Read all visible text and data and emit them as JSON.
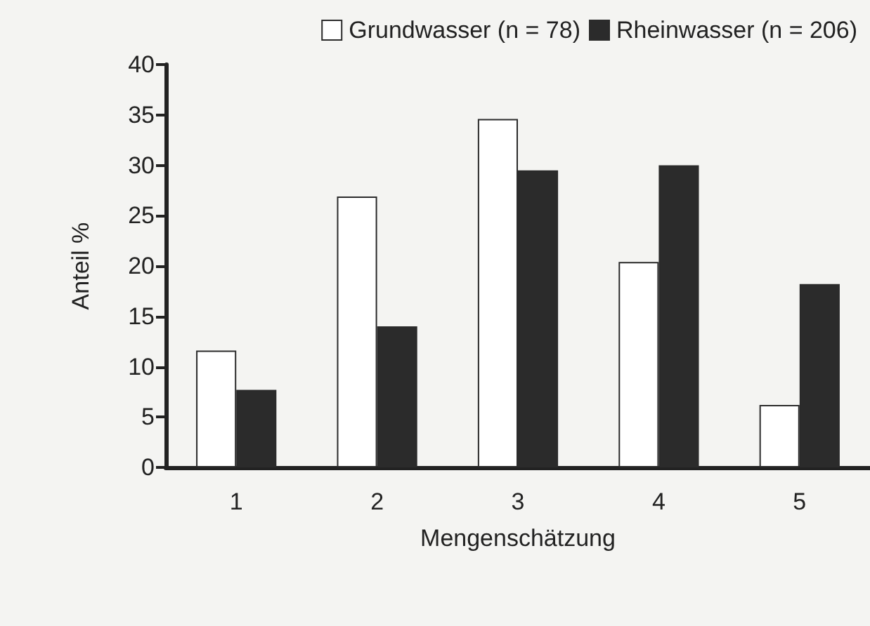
{
  "chart_data": {
    "type": "bar",
    "xlabel": "Mengenschätzung",
    "ylabel": "Anteil %",
    "categories": [
      "1",
      "2",
      "3",
      "4",
      "5"
    ],
    "series": [
      {
        "name": "Grundwasser (n = 78)",
        "color": "#ffffff",
        "values": [
          11.6,
          26.9,
          34.6,
          20.4,
          6.2
        ]
      },
      {
        "name": "Rheinwasser (n = 206)",
        "color": "#2b2b2b",
        "values": [
          7.7,
          14.0,
          29.5,
          30.0,
          18.2
        ]
      }
    ],
    "ylim": [
      0,
      40
    ],
    "yticks": [
      0,
      5,
      10,
      15,
      20,
      25,
      30,
      35,
      40
    ],
    "grid": false,
    "legend": "top right"
  }
}
